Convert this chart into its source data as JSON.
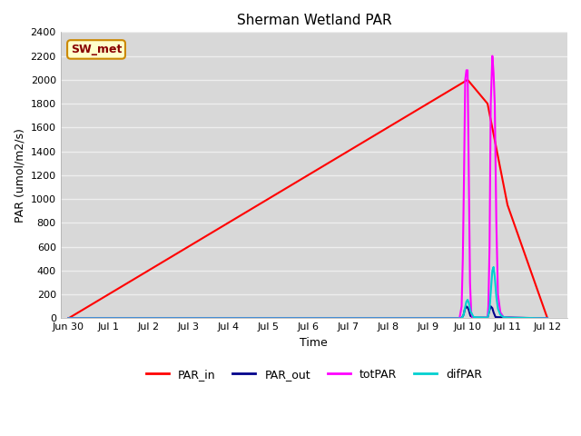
{
  "title": "Sherman Wetland PAR",
  "xlabel": "Time",
  "ylabel": "PAR (umol/m2/s)",
  "ylim": [
    0,
    2400
  ],
  "yticks": [
    0,
    200,
    400,
    600,
    800,
    1000,
    1200,
    1400,
    1600,
    1800,
    2000,
    2200,
    2400
  ],
  "xlim": [
    -0.2,
    12.5
  ],
  "xtick_labels": [
    "Jun 30",
    "Jul 1",
    "Jul 2",
    "Jul 3",
    "Jul 4",
    "Jul 5",
    "Jul 6",
    "Jul 7",
    "Jul 8",
    "Jul 9",
    "Jul 10",
    "Jul 11",
    "Jul 12"
  ],
  "xtick_positions": [
    0,
    1,
    2,
    3,
    4,
    5,
    6,
    7,
    8,
    9,
    10,
    11,
    12
  ],
  "legend_labels": [
    "PAR_in",
    "PAR_out",
    "totPAR",
    "difPAR"
  ],
  "legend_colors": [
    "#ff0000",
    "#00008b",
    "#ff00ff",
    "#00d0d0"
  ],
  "line_colors": {
    "PAR_in": "#ff0000",
    "PAR_out": "#00008b",
    "totPAR": "#ff00ff",
    "difPAR": "#00d0d0"
  },
  "figure_bg": "#ffffff",
  "plot_bg_color": "#d8d8d8",
  "annotation_text": "SW_met",
  "annotation_bg": "#ffffcc",
  "annotation_border": "#cc8800",
  "annotation_text_color": "#880000",
  "grid_color": "#eeeeee",
  "PAR_in": {
    "x": [
      0,
      10.0,
      10.5,
      11.0,
      12.0
    ],
    "y": [
      0,
      2000,
      1800,
      950,
      0
    ]
  },
  "PAR_out": {
    "x": [
      0,
      9.83,
      9.86,
      9.9,
      9.93,
      9.97,
      10.0,
      10.03,
      10.07,
      10.15,
      10.5,
      10.52,
      10.55,
      10.58,
      10.62,
      10.65,
      10.7,
      11.2,
      12.0
    ],
    "y": [
      0,
      0,
      5,
      30,
      75,
      100,
      90,
      70,
      20,
      5,
      5,
      30,
      70,
      100,
      85,
      50,
      10,
      5,
      0
    ]
  },
  "totPAR": {
    "x": [
      0,
      9.75,
      9.8,
      9.85,
      9.88,
      9.91,
      9.94,
      9.97,
      10.0,
      10.03,
      10.06,
      10.09,
      10.12,
      10.2,
      10.5,
      10.52,
      10.55,
      10.58,
      10.62,
      10.65,
      10.68,
      10.72,
      10.76,
      10.82,
      10.9,
      11.05,
      12.0
    ],
    "y": [
      0,
      0,
      5,
      100,
      500,
      1200,
      2000,
      2080,
      2080,
      1200,
      300,
      50,
      10,
      5,
      5,
      100,
      600,
      1800,
      2200,
      2060,
      1800,
      800,
      200,
      50,
      10,
      5,
      0
    ]
  },
  "difPAR": {
    "x": [
      0,
      9.83,
      9.86,
      9.9,
      9.93,
      9.97,
      10.0,
      10.03,
      10.07,
      10.15,
      10.5,
      10.52,
      10.55,
      10.58,
      10.62,
      10.65,
      10.68,
      10.72,
      10.76,
      10.82,
      10.9,
      11.05,
      12.0
    ],
    "y": [
      0,
      0,
      5,
      30,
      80,
      140,
      155,
      130,
      60,
      10,
      5,
      30,
      80,
      220,
      400,
      430,
      350,
      180,
      80,
      30,
      10,
      5,
      0
    ]
  }
}
